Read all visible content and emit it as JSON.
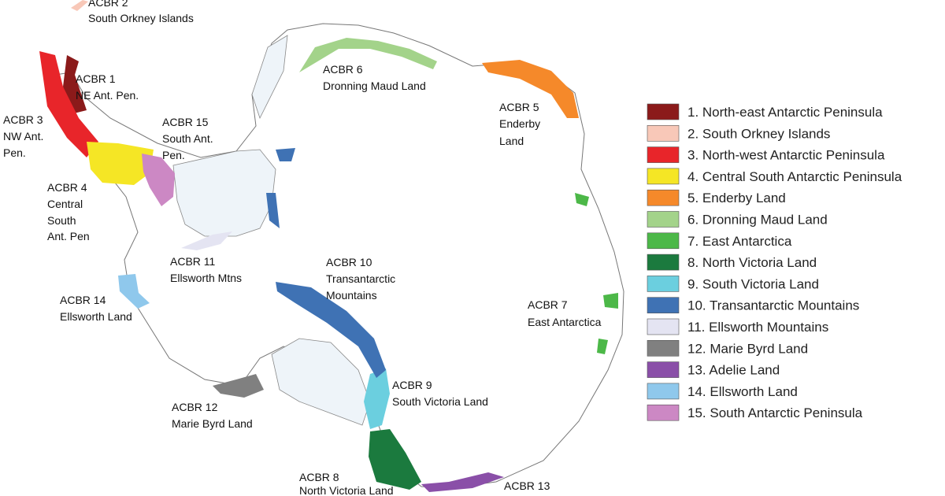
{
  "map_labels": [
    {
      "lines": [
        "ACBR 2",
        "South Orkney Islands"
      ]
    },
    {
      "lines": [
        "ACBR 1",
        "NE Ant. Pen."
      ]
    },
    {
      "lines": [
        "ACBR 3",
        "NW Ant.",
        "Pen."
      ]
    },
    {
      "lines": [
        "ACBR 15",
        "South Ant.",
        "Pen."
      ]
    },
    {
      "lines": [
        "ACBR 4",
        "Central",
        "South",
        "Ant. Pen"
      ]
    },
    {
      "lines": [
        "ACBR 11",
        "Ellsworth Mtns"
      ]
    },
    {
      "lines": [
        "ACBR 14",
        "Ellsworth Land"
      ]
    },
    {
      "lines": [
        "ACBR 6",
        "Dronning Maud Land"
      ]
    },
    {
      "lines": [
        "ACBR 5",
        "Enderby",
        "Land"
      ]
    },
    {
      "lines": [
        "ACBR 10",
        "Transantarctic",
        "Mountains"
      ]
    },
    {
      "lines": [
        "ACBR 7",
        "East Antarctica"
      ]
    },
    {
      "lines": [
        "ACBR 9",
        "South Victoria Land"
      ]
    },
    {
      "lines": [
        "ACBR 12",
        "Marie Byrd Land"
      ]
    },
    {
      "lines": [
        "ACBR 8",
        "North Victoria Land"
      ]
    },
    {
      "lines": [
        "ACBR 13"
      ]
    }
  ],
  "legend": {
    "items": [
      {
        "label": "1. North-east Antarctic Peninsula",
        "color": "#8b1a1a"
      },
      {
        "label": "2. South Orkney Islands",
        "color": "#f8c8b8"
      },
      {
        "label": "3. North-west Antarctic Peninsula",
        "color": "#e8252a"
      },
      {
        "label": "4. Central South Antarctic Peninsula",
        "color": "#f5e625"
      },
      {
        "label": "5. Enderby Land",
        "color": "#f5892a"
      },
      {
        "label": "6. Dronning Maud Land",
        "color": "#a3d38a"
      },
      {
        "label": "7. East Antarctica",
        "color": "#4cb848"
      },
      {
        "label": "8. North Victoria Land",
        "color": "#1b7a3e"
      },
      {
        "label": "9. South Victoria Land",
        "color": "#6bcfdf"
      },
      {
        "label": "10. Transantarctic Mountains",
        "color": "#3f72b4"
      },
      {
        "label": "11. Ellsworth Mountains",
        "color": "#e4e4f2"
      },
      {
        "label": "12. Marie Byrd Land",
        "color": "#808080"
      },
      {
        "label": "13. Adelie Land",
        "color": "#8a4fa8"
      },
      {
        "label": "14. Ellsworth Land",
        "color": "#8fc8ec"
      },
      {
        "label": "15. South Antarctic Peninsula",
        "color": "#cc88c4"
      }
    ]
  }
}
